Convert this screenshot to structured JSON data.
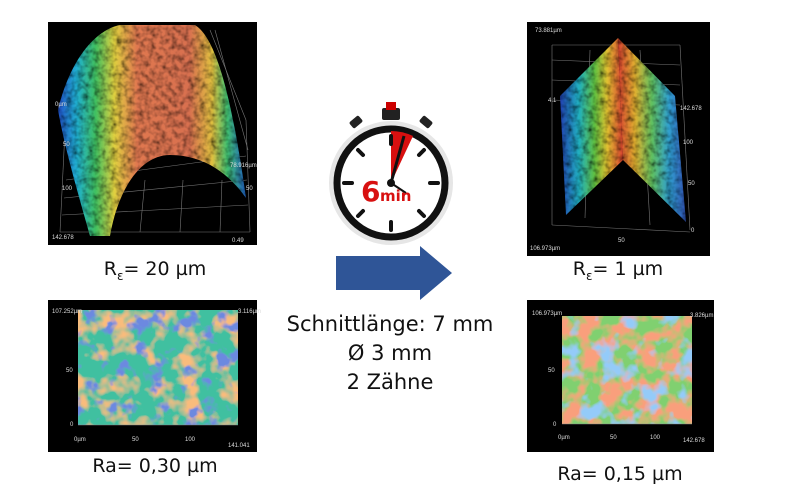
{
  "panels": [
    {
      "label": {
        "main": "R",
        "sub": "ε",
        "rest": "= 20 µm"
      },
      "axis_labels": [
        "0µm",
        "50",
        "100",
        "142.678",
        "78.916µm",
        "50",
        "0.49"
      ]
    },
    {
      "label": "Ra= 0,30 µm",
      "axis_labels": [
        "107.252µm",
        "50",
        "0",
        "0µm",
        "50",
        "100",
        "141.041",
        "3.116µm"
      ]
    },
    {
      "label": {
        "main": "R",
        "sub": "ε",
        "rest": "= 1 µm"
      },
      "axis_labels": [
        "73.881µm",
        "4.1",
        "142.678",
        "100",
        "50",
        "0",
        "50",
        "106.973µm"
      ]
    },
    {
      "label": "Ra= 0,15 µm",
      "axis_labels": [
        "106.973µm",
        "50",
        "0",
        "0µm",
        "50",
        "100",
        "142.678",
        "3.826µm"
      ]
    }
  ],
  "stopwatch": {
    "value": "6",
    "unit": "min"
  },
  "process": {
    "lines": [
      "Schnittlänge: 7 mm",
      "Ø 3 mm",
      "2 Zähne"
    ]
  }
}
